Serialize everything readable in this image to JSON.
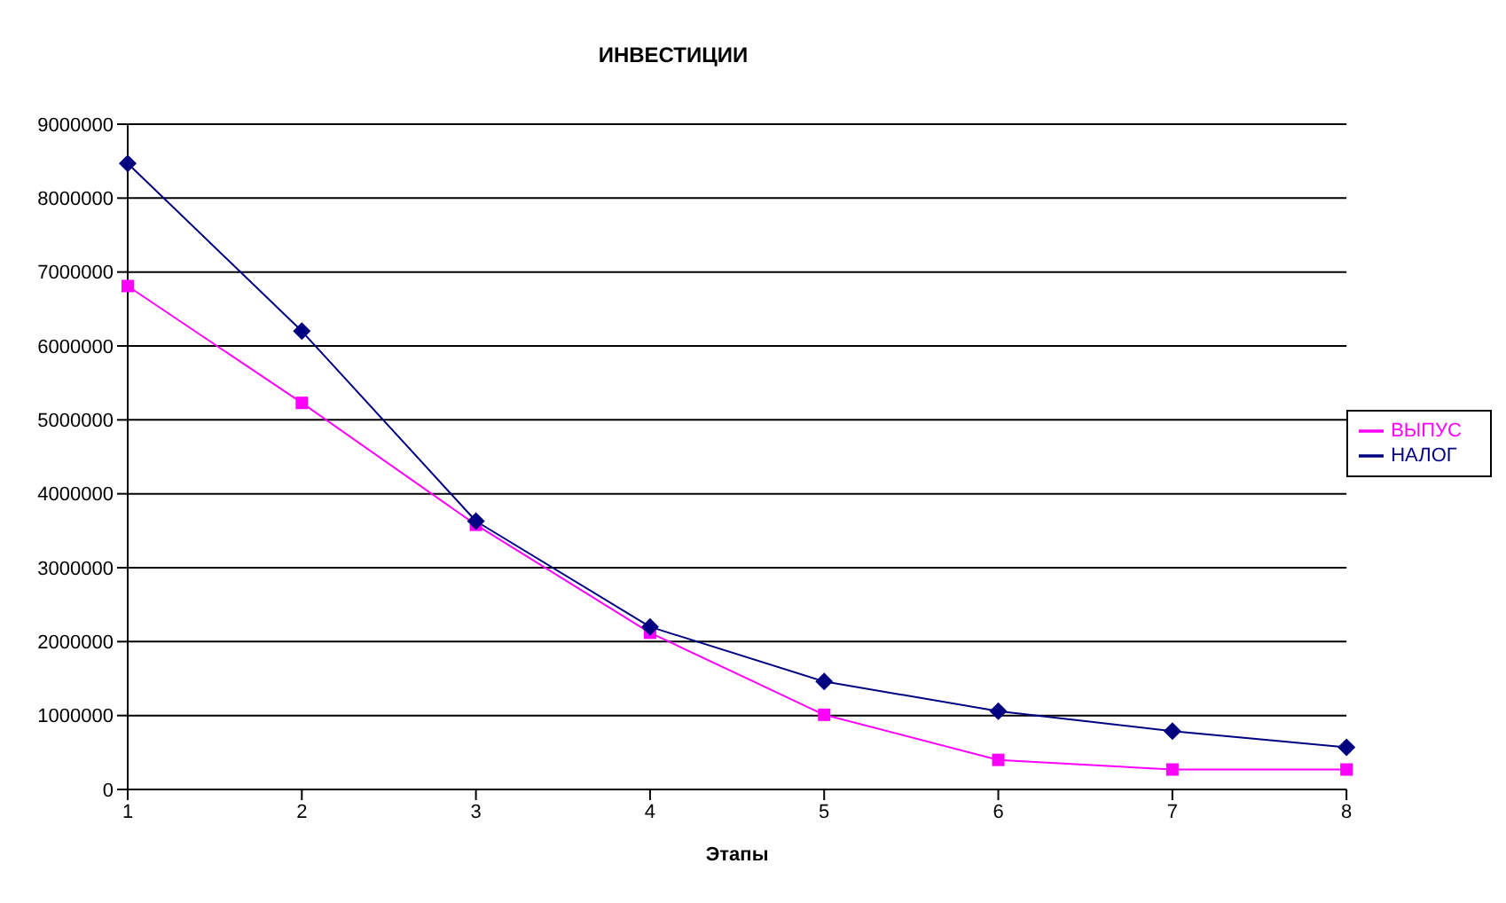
{
  "chart_data": {
    "type": "line",
    "title": "ИНВЕСТИЦИИ",
    "xlabel": "Этапы",
    "categories": [
      "1",
      "2",
      "3",
      "4",
      "5",
      "6",
      "7",
      "8"
    ],
    "series": [
      {
        "name": "НАЛОГ",
        "color": "#000080",
        "marker": "diamond",
        "values": [
          8470000,
          6200000,
          3630000,
          2200000,
          1460000,
          1060000,
          790000,
          570000
        ]
      },
      {
        "name": "ВЫПУС",
        "color": "#ff00ff",
        "marker": "square",
        "values": [
          6810000,
          5230000,
          3580000,
          2120000,
          1010000,
          400000,
          270000,
          270000
        ]
      }
    ],
    "ylim": [
      0,
      9000000
    ],
    "yticks": [
      0,
      1000000,
      2000000,
      3000000,
      4000000,
      5000000,
      6000000,
      7000000,
      8000000,
      9000000
    ],
    "grid": "y",
    "legend": "right",
    "line_style": "solid"
  }
}
